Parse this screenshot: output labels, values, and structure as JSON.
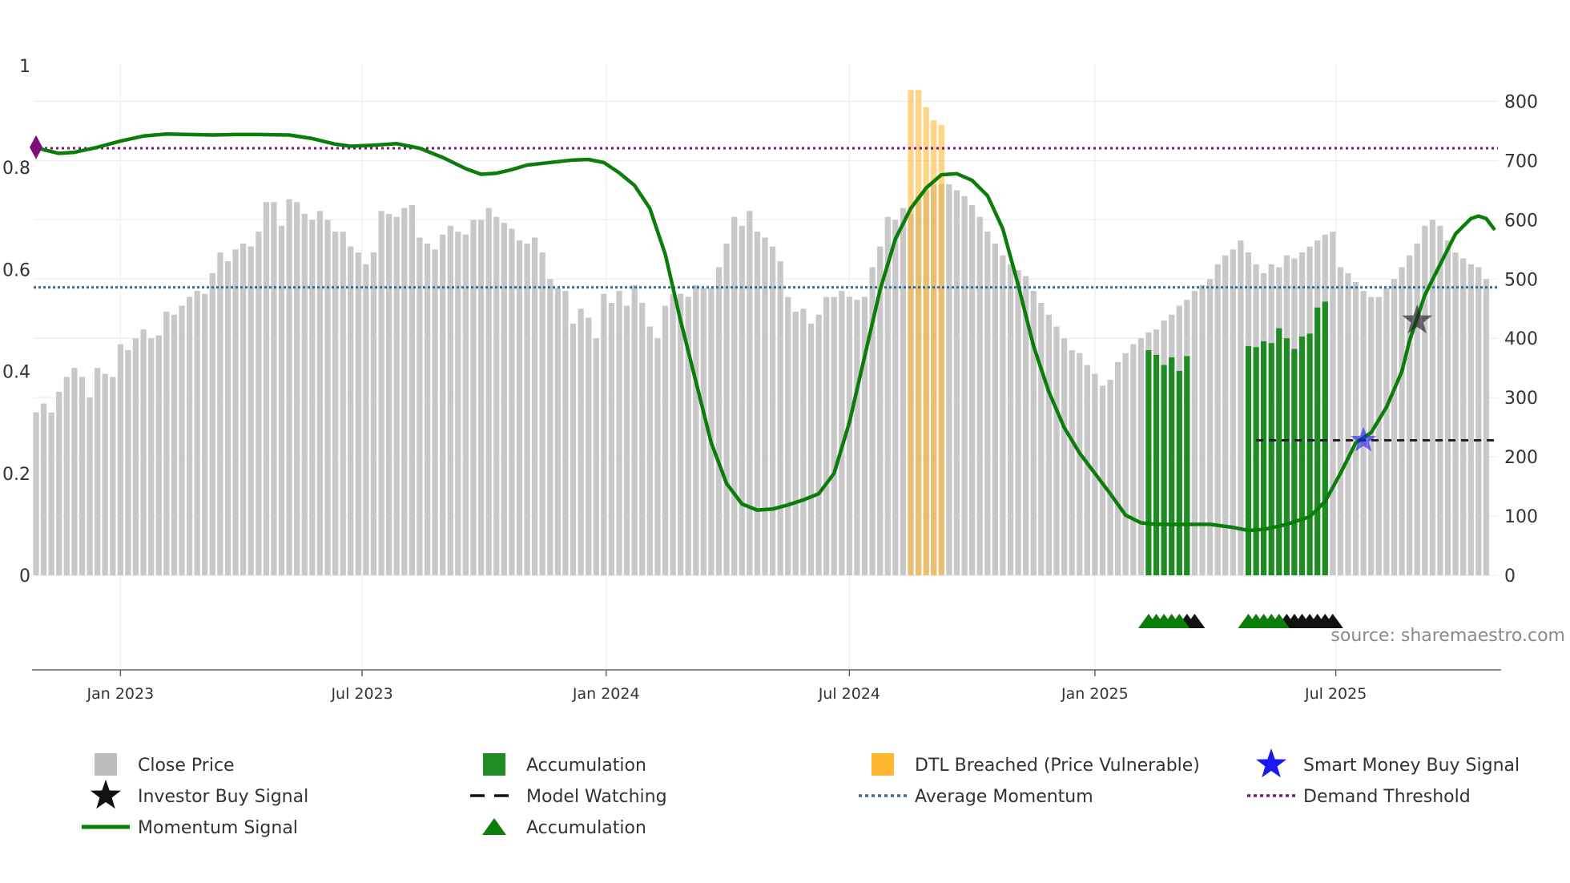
{
  "chart_data": {
    "type": "bar+line",
    "source": "source: sharemaestro.com",
    "colors": {
      "close": "#c8c8c8",
      "accumulation": "#1f8c23",
      "dtl": "#ffb732",
      "momentum": "#0a7d0a",
      "avg_momentum": "#2c6e9e",
      "demand": "#7b107b",
      "smart_money": "#1a1af0",
      "investor": "#222222"
    },
    "left_axis": {
      "range": [
        0,
        1.0
      ],
      "ticks": [
        0,
        0.2,
        0.4,
        0.6,
        0.8,
        1
      ],
      "tick_labels": [
        "0",
        "0.2",
        "0.4",
        "0.6",
        "0.8",
        "1"
      ]
    },
    "right_axis": {
      "range": [
        0,
        850
      ],
      "ticks": [
        0,
        100,
        200,
        300,
        400,
        500,
        600,
        700,
        800
      ],
      "tick_labels": [
        "0",
        "100",
        "200",
        "300",
        "400",
        "500",
        "600",
        "700",
        "800"
      ]
    },
    "x_axis": {
      "range_weeks": [
        0,
        190
      ],
      "ticks": [
        {
          "week": 11.0,
          "label": "Jan 2023"
        },
        {
          "week": 42.5,
          "label": "Jul 2023"
        },
        {
          "week": 74.3,
          "label": "Jan 2024"
        },
        {
          "week": 106.0,
          "label": "Jul 2024"
        },
        {
          "week": 138.0,
          "label": "Jan 2025"
        },
        {
          "week": 169.4,
          "label": "Jul 2025"
        }
      ]
    },
    "close_prices": [
      275,
      290,
      275,
      310,
      335,
      350,
      335,
      300,
      350,
      340,
      335,
      390,
      380,
      400,
      415,
      400,
      405,
      445,
      440,
      455,
      470,
      480,
      475,
      510,
      545,
      530,
      550,
      560,
      555,
      580,
      630,
      630,
      590,
      635,
      630,
      610,
      600,
      615,
      600,
      580,
      580,
      555,
      545,
      525,
      545,
      615,
      610,
      605,
      620,
      625,
      570,
      560,
      550,
      575,
      590,
      580,
      575,
      600,
      600,
      620,
      605,
      595,
      585,
      565,
      560,
      570,
      545,
      500,
      485,
      480,
      425,
      450,
      435,
      400,
      475,
      460,
      480,
      455,
      490,
      460,
      420,
      400,
      455,
      475,
      475,
      470,
      490,
      485,
      485,
      520,
      560,
      605,
      590,
      615,
      580,
      570,
      555,
      530,
      470,
      445,
      450,
      425,
      440,
      470,
      470,
      480,
      470,
      465,
      470,
      520,
      555,
      605,
      600,
      620,
      610,
      640,
      650,
      660,
      660,
      660,
      650,
      640,
      625,
      605,
      580,
      560,
      540,
      525,
      515,
      505,
      480,
      460,
      440,
      420,
      400,
      380,
      375,
      355,
      340,
      320,
      330,
      360,
      375,
      390,
      400,
      410,
      415,
      430,
      440,
      455,
      465,
      480,
      490,
      500,
      525,
      540,
      550,
      565,
      545,
      525,
      510,
      525,
      520,
      540,
      535,
      545,
      555,
      565,
      575,
      580,
      520,
      510,
      495,
      480,
      470,
      470,
      485,
      500,
      520,
      540,
      560,
      590,
      600,
      590,
      565,
      545,
      535,
      525,
      520,
      500
    ],
    "series": [
      {
        "name": "Close Price",
        "kind": "bar"
      },
      {
        "name": "Accumulation",
        "kind": "bar",
        "values": [
          [
            145,
            380
          ],
          [
            146,
            372
          ],
          [
            147,
            355
          ],
          [
            148,
            368
          ],
          [
            149,
            345
          ],
          [
            150,
            370
          ],
          [
            158,
            387
          ],
          [
            159,
            385
          ],
          [
            160,
            395
          ],
          [
            161,
            392
          ],
          [
            162,
            417
          ],
          [
            163,
            400
          ],
          [
            164,
            382
          ],
          [
            165,
            403
          ],
          [
            166,
            408
          ],
          [
            167,
            452
          ],
          [
            168,
            462
          ]
        ]
      },
      {
        "name": "DTL Breached (Price Vulnerable)",
        "kind": "bar",
        "values": [
          [
            114,
            819
          ],
          [
            115,
            819
          ],
          [
            116,
            790
          ],
          [
            117,
            768
          ],
          [
            118,
            760
          ]
        ]
      },
      {
        "name": "Momentum Signal",
        "kind": "line",
        "points": [
          [
            0,
            0.84
          ],
          [
            1,
            0.835
          ],
          [
            3,
            0.828
          ],
          [
            5,
            0.83
          ],
          [
            8,
            0.84
          ],
          [
            11,
            0.852
          ],
          [
            14,
            0.862
          ],
          [
            17,
            0.866
          ],
          [
            20,
            0.865
          ],
          [
            23,
            0.864
          ],
          [
            26,
            0.865
          ],
          [
            29,
            0.865
          ],
          [
            33,
            0.864
          ],
          [
            36,
            0.857
          ],
          [
            39,
            0.846
          ],
          [
            41,
            0.842
          ],
          [
            44,
            0.844
          ],
          [
            47,
            0.847
          ],
          [
            50,
            0.838
          ],
          [
            53,
            0.82
          ],
          [
            56,
            0.798
          ],
          [
            58,
            0.787
          ],
          [
            60,
            0.789
          ],
          [
            62,
            0.796
          ],
          [
            64,
            0.805
          ],
          [
            67,
            0.81
          ],
          [
            70,
            0.815
          ],
          [
            72,
            0.816
          ],
          [
            74,
            0.81
          ],
          [
            76,
            0.79
          ],
          [
            78,
            0.765
          ],
          [
            80,
            0.72
          ],
          [
            82,
            0.63
          ],
          [
            84,
            0.5
          ],
          [
            86,
            0.38
          ],
          [
            88,
            0.26
          ],
          [
            90,
            0.18
          ],
          [
            92,
            0.14
          ],
          [
            94,
            0.128
          ],
          [
            96,
            0.13
          ],
          [
            98,
            0.138
          ],
          [
            100,
            0.148
          ],
          [
            102,
            0.16
          ],
          [
            104,
            0.2
          ],
          [
            106,
            0.3
          ],
          [
            108,
            0.43
          ],
          [
            110,
            0.56
          ],
          [
            112,
            0.66
          ],
          [
            114,
            0.72
          ],
          [
            116,
            0.76
          ],
          [
            118,
            0.786
          ],
          [
            120,
            0.788
          ],
          [
            122,
            0.775
          ],
          [
            124,
            0.745
          ],
          [
            126,
            0.68
          ],
          [
            128,
            0.57
          ],
          [
            130,
            0.45
          ],
          [
            132,
            0.36
          ],
          [
            134,
            0.29
          ],
          [
            136,
            0.24
          ],
          [
            138,
            0.2
          ],
          [
            140,
            0.16
          ],
          [
            142,
            0.118
          ],
          [
            144,
            0.103
          ],
          [
            146,
            0.1
          ],
          [
            150,
            0.1
          ],
          [
            153,
            0.1
          ],
          [
            156,
            0.094
          ],
          [
            158,
            0.088
          ],
          [
            160,
            0.09
          ],
          [
            163,
            0.1
          ],
          [
            166,
            0.115
          ],
          [
            168,
            0.145
          ],
          [
            170,
            0.2
          ],
          [
            172,
            0.26
          ],
          [
            174,
            0.28
          ],
          [
            176,
            0.33
          ],
          [
            178,
            0.4
          ],
          [
            179,
            0.46
          ],
          [
            181,
            0.55
          ],
          [
            183,
            0.61
          ],
          [
            185,
            0.67
          ],
          [
            187,
            0.7
          ],
          [
            188,
            0.705
          ],
          [
            189,
            0.7
          ],
          [
            190,
            0.68
          ]
        ]
      },
      {
        "name": "Average Momentum",
        "kind": "hline",
        "value": 0.565
      },
      {
        "name": "Demand Threshold",
        "kind": "hline",
        "value": 0.838
      },
      {
        "name": "Model Watching",
        "kind": "dashed",
        "value": 0.265,
        "from_week": 159,
        "to_week": 190
      },
      {
        "name": "Smart Money Buy Signal",
        "kind": "marker",
        "week": 173,
        "value": 0.265
      },
      {
        "name": "Investor Buy Signal",
        "kind": "marker",
        "week": 180,
        "value": 0.5
      },
      {
        "name": "Accumulation",
        "kind": "triangles",
        "green": [
          145,
          146,
          147,
          148,
          149,
          158,
          159,
          160,
          161,
          162
        ],
        "black": [
          150,
          151,
          163,
          164,
          165,
          166,
          167,
          168,
          169
        ]
      }
    ]
  },
  "legend": [
    {
      "label": "Close Price",
      "icon": "square",
      "color": "#bdbdbd"
    },
    {
      "label": "Accumulation",
      "icon": "square",
      "color": "#1f8c23"
    },
    {
      "label": "DTL Breached (Price Vulnerable)",
      "icon": "square",
      "color": "#ffb732"
    },
    {
      "label": "Smart Money Buy Signal",
      "icon": "star",
      "color": "#1a1af0"
    },
    {
      "label": "Investor Buy Signal",
      "icon": "star",
      "color": "#111111"
    },
    {
      "label": "Model Watching",
      "icon": "dash",
      "color": "#111111"
    },
    {
      "label": "Average Momentum",
      "icon": "dot",
      "color": "#2c6e9e"
    },
    {
      "label": "Demand Threshold",
      "icon": "dot",
      "color": "#7b107b"
    },
    {
      "label": "Momentum Signal",
      "icon": "line",
      "color": "#0a7d0a"
    },
    {
      "label": "Accumulation",
      "icon": "triangle",
      "color": "#0a7d0a"
    }
  ]
}
